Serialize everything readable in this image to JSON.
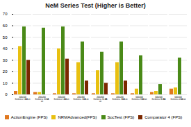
{
  "chart_data": {
    "type": "bar",
    "title": "NeM Series Test (Higher is Better)",
    "categories": [
      "100x100\nthickness 1 AA on",
      "200x200\nthickness 10 AA\non",
      "200x200\nthickness 1 AA on",
      "200x300\nthickness 1 AA on",
      "200x300\nthickness 10 AA\non",
      "200x200\nthickness 3 AA on",
      "500x500\nthickness 3 AA on",
      "500x500\nthickness 30 AA",
      "500x500\nthickness 2 AA on"
    ],
    "series": [
      {
        "name": "ActionEngine (FPS)",
        "color": "#E07820",
        "values": [
          3,
          2,
          1,
          1,
          1,
          1,
          1,
          2,
          5
        ]
      },
      {
        "name": "NRMAdvanced(FPS)",
        "color": "#E8C010",
        "values": [
          42,
          2,
          40,
          28,
          21,
          28,
          5,
          3,
          6
        ]
      },
      {
        "name": "SocTest (FPS)",
        "color": "#4A8A18",
        "values": [
          59,
          58,
          59,
          46,
          37,
          46,
          34,
          9,
          32
        ]
      },
      {
        "name": "Comparator 4 (FPS)",
        "color": "#7B2800",
        "values": [
          30,
          0,
          31,
          12,
          10,
          12,
          0,
          0,
          0
        ]
      }
    ],
    "ylim": [
      0,
      70
    ],
    "yticks": [
      0,
      10,
      20,
      30,
      40,
      50,
      60,
      70
    ],
    "grid": true,
    "legend": "bottom"
  }
}
